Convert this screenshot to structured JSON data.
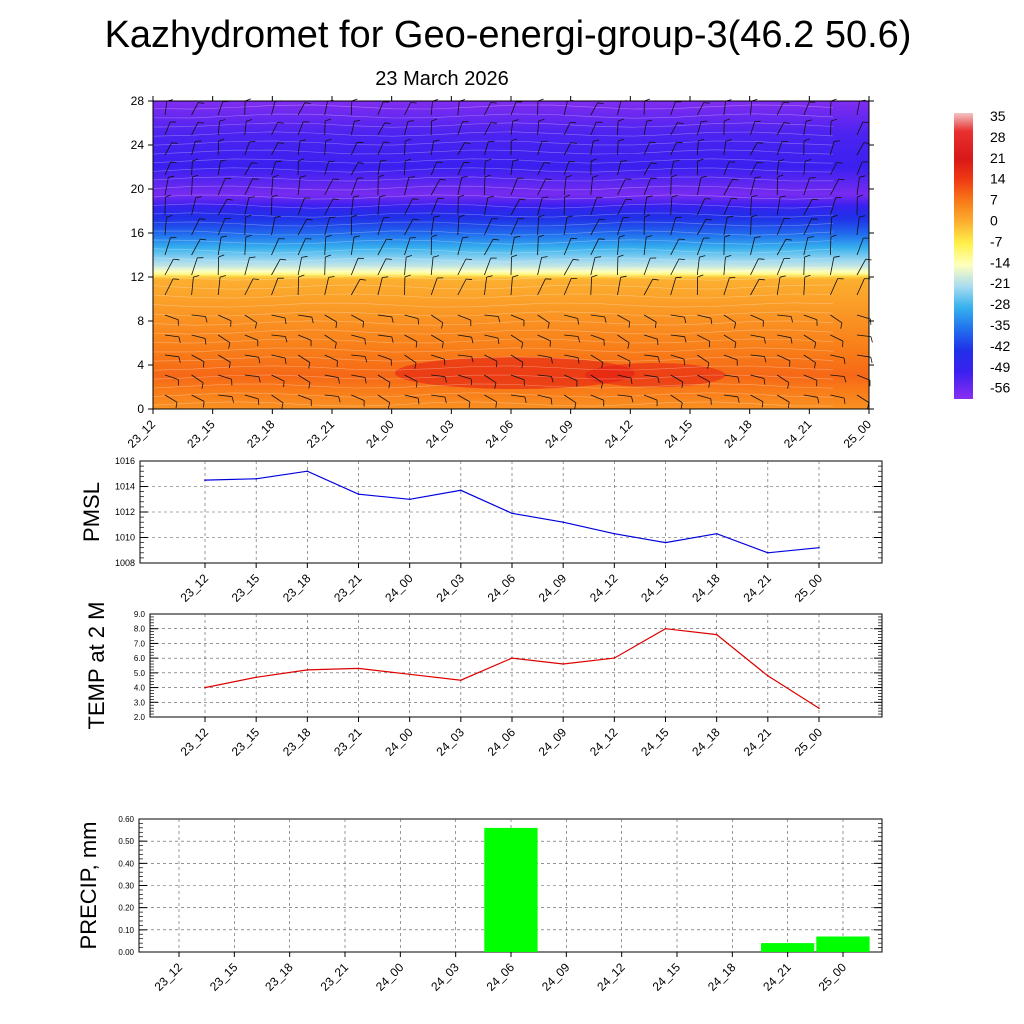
{
  "header": {
    "title": "Kazhydromet for Geo-energi-group-3(46.2 50.6)",
    "date": "23 March 2026"
  },
  "chart_data": [
    {
      "type": "heatmap",
      "name": "temperature-wind-cross-section",
      "x_tick_labels": [
        "23_12",
        "23_15",
        "23_18",
        "23_21",
        "24_00",
        "24_03",
        "24_06",
        "24_09",
        "24_12",
        "24_15",
        "24_18",
        "24_21",
        "25_00"
      ],
      "y_ticks": [
        0,
        4,
        8,
        12,
        16,
        20,
        24,
        28
      ],
      "ylim": [
        0,
        28
      ],
      "colorbar_labels": [
        "35",
        "28",
        "21",
        "14",
        "7",
        "0",
        "-7",
        "-14",
        "-21",
        "-28",
        "-35",
        "-42",
        "-49",
        "-56"
      ],
      "colorbar_stops": [
        {
          "v": 36,
          "c": "#f2c4c4"
        },
        {
          "v": 30,
          "c": "#e83030"
        },
        {
          "v": 21,
          "c": "#d81818"
        },
        {
          "v": 14,
          "c": "#f03a14"
        },
        {
          "v": 7,
          "c": "#f87a18"
        },
        {
          "v": 0,
          "c": "#fcb030"
        },
        {
          "v": -7,
          "c": "#fff24a"
        },
        {
          "v": -14,
          "c": "#ffffbe"
        },
        {
          "v": -21,
          "c": "#a8dcf0"
        },
        {
          "v": -28,
          "c": "#35b0ee"
        },
        {
          "v": -35,
          "c": "#2270ee"
        },
        {
          "v": -42,
          "c": "#2030e8"
        },
        {
          "v": -49,
          "c": "#3a20f0"
        },
        {
          "v": -58,
          "c": "#8a2ef0"
        }
      ],
      "temperature_profile": [
        {
          "h": 0,
          "t": 4
        },
        {
          "h": 3,
          "t": 9
        },
        {
          "h": 6,
          "t": 6
        },
        {
          "h": 9,
          "t": 3
        },
        {
          "h": 11.9,
          "t": 0
        },
        {
          "h": 12.3,
          "t": -12
        },
        {
          "h": 13,
          "t": -19
        },
        {
          "h": 14.5,
          "t": -27
        },
        {
          "h": 16,
          "t": -36
        },
        {
          "h": 18,
          "t": -45
        },
        {
          "h": 18.6,
          "t": -50
        },
        {
          "h": 19.5,
          "t": -56
        },
        {
          "h": 22,
          "t": -49
        },
        {
          "h": 25,
          "t": -51
        },
        {
          "h": 28,
          "t": -57
        }
      ]
    },
    {
      "type": "line",
      "name": "pmsl",
      "ylabel": "PMSL",
      "x": [
        "23_12",
        "23_15",
        "23_18",
        "23_21",
        "24_00",
        "24_03",
        "24_06",
        "24_09",
        "24_12",
        "24_15",
        "24_18",
        "24_21",
        "25_00"
      ],
      "values": [
        1014.5,
        1014.6,
        1015.2,
        1013.4,
        1013.0,
        1013.7,
        1011.9,
        1011.2,
        1010.3,
        1009.6,
        1010.3,
        1008.8,
        1009.2
      ],
      "ylim": [
        1008,
        1016
      ],
      "y_tick_labels": [
        "1008",
        "1010",
        "1012",
        "1014",
        "1016"
      ],
      "color": "#0000dd"
    },
    {
      "type": "line",
      "name": "temp-2m",
      "ylabel": "TEMP at 2 M",
      "x": [
        "23_12",
        "23_15",
        "23_18",
        "23_21",
        "24_00",
        "24_03",
        "24_06",
        "24_09",
        "24_12",
        "24_15",
        "24_18",
        "24_21",
        "25_00"
      ],
      "values": [
        4.0,
        4.7,
        5.2,
        5.3,
        4.9,
        4.5,
        6.0,
        5.6,
        6.0,
        8.0,
        7.6,
        4.8,
        2.6
      ],
      "ylim": [
        2.0,
        9.0
      ],
      "y_tick_labels": [
        "2.0",
        "3.0",
        "4.0",
        "5.0",
        "6.0",
        "7.0",
        "8.0",
        "9.0"
      ],
      "color": "#dd0000"
    },
    {
      "type": "bar",
      "name": "precip",
      "ylabel": "PRECIP, mm",
      "categories": [
        "23_12",
        "23_15",
        "23_18",
        "23_21",
        "24_00",
        "24_03",
        "24_06",
        "24_09",
        "24_12",
        "24_15",
        "24_18",
        "24_21",
        "25_00"
      ],
      "values": [
        0,
        0,
        0,
        0,
        0,
        0,
        0.56,
        0,
        0,
        0,
        0,
        0.04,
        0.07
      ],
      "ylim": [
        0,
        0.6
      ],
      "y_tick_labels": [
        "0.00",
        "0.10",
        "0.20",
        "0.30",
        "0.40",
        "0.50",
        "0.60"
      ],
      "color": "#00ff00"
    }
  ]
}
